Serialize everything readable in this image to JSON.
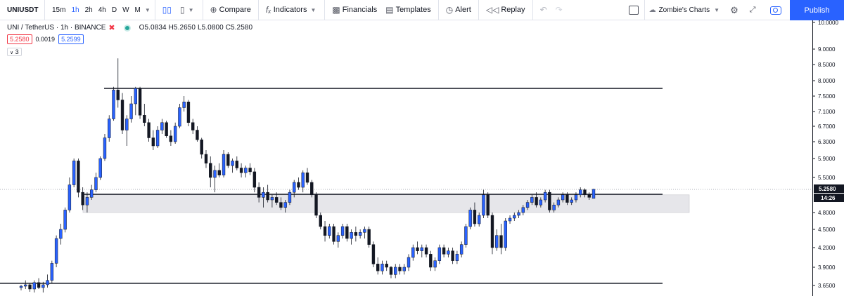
{
  "toolbar": {
    "symbol": "UNIUSDT",
    "intervals": [
      "15m",
      "1h",
      "2h",
      "4h",
      "D",
      "W",
      "M"
    ],
    "active_interval": "1h",
    "compare_label": "Compare",
    "indicators_label": "Indicators",
    "financials_label": "Financials",
    "templates_label": "Templates",
    "alert_label": "Alert",
    "replay_label": "Replay",
    "layout_name": "Zombie's Charts",
    "publish_label": "Publish"
  },
  "legend": {
    "title": "UNI / TetherUS · 1h · BINANCE",
    "ohlc": "O5.0834 H5.2650 L5.0800 C5.2580",
    "bid": "5.2580",
    "spread": "0.0019",
    "ask": "5.2599",
    "collapsed_count": "3"
  },
  "colors": {
    "up": "#2962ff",
    "down": "#131722",
    "zone_fill": "#e6e6ea",
    "line": "#131722",
    "publish": "#2962ff",
    "last_price_bg": "#131722"
  },
  "chart_data": {
    "type": "candlestick",
    "price_axis_ticks": [
      "10.0000",
      "9.0000",
      "8.5000",
      "8.0000",
      "7.5000",
      "7.1000",
      "6.7000",
      "6.3000",
      "5.9000",
      "5.5000",
      "4.8000",
      "4.5000",
      "4.2000",
      "3.9000",
      "3.6500"
    ],
    "last_price": "5.2580",
    "countdown": "14:26",
    "horizontal_levels": [
      7.75,
      3.68
    ],
    "support_zone": [
      4.8,
      5.15
    ],
    "candles": [
      [
        3.62,
        3.66,
        3.58,
        3.64
      ],
      [
        3.64,
        3.72,
        3.6,
        3.66
      ],
      [
        3.66,
        3.68,
        3.56,
        3.6
      ],
      [
        3.6,
        3.72,
        3.55,
        3.69
      ],
      [
        3.69,
        3.75,
        3.6,
        3.62
      ],
      [
        3.62,
        3.7,
        3.55,
        3.66
      ],
      [
        3.66,
        3.8,
        3.62,
        3.72
      ],
      [
        3.72,
        4.0,
        3.68,
        3.96
      ],
      [
        3.96,
        4.4,
        3.9,
        4.35
      ],
      [
        4.35,
        4.6,
        4.25,
        4.5
      ],
      [
        4.5,
        4.9,
        4.45,
        4.85
      ],
      [
        4.85,
        5.5,
        4.8,
        5.35
      ],
      [
        5.35,
        5.9,
        5.3,
        5.85
      ],
      [
        5.85,
        5.9,
        5.1,
        5.2
      ],
      [
        5.2,
        5.3,
        4.85,
        4.95
      ],
      [
        4.95,
        5.2,
        4.8,
        5.1
      ],
      [
        5.1,
        5.35,
        5.05,
        5.25
      ],
      [
        5.25,
        5.6,
        5.2,
        5.5
      ],
      [
        5.5,
        5.95,
        5.45,
        5.9
      ],
      [
        5.9,
        6.5,
        5.85,
        6.4
      ],
      [
        6.4,
        7.0,
        6.3,
        6.9
      ],
      [
        6.9,
        7.8,
        6.85,
        7.7
      ],
      [
        7.7,
        8.7,
        7.2,
        7.4
      ],
      [
        7.4,
        7.6,
        6.5,
        6.6
      ],
      [
        6.6,
        7.0,
        6.2,
        6.9
      ],
      [
        6.9,
        7.5,
        6.8,
        7.3
      ],
      [
        7.3,
        7.8,
        7.0,
        7.75
      ],
      [
        7.75,
        7.8,
        6.9,
        7.0
      ],
      [
        7.0,
        7.3,
        6.7,
        6.8
      ],
      [
        6.8,
        6.9,
        6.3,
        6.4
      ],
      [
        6.4,
        6.6,
        6.1,
        6.2
      ],
      [
        6.2,
        6.7,
        6.15,
        6.6
      ],
      [
        6.6,
        6.9,
        6.5,
        6.8
      ],
      [
        6.8,
        6.85,
        6.4,
        6.45
      ],
      [
        6.45,
        6.6,
        6.2,
        6.3
      ],
      [
        6.3,
        6.8,
        6.25,
        6.7
      ],
      [
        6.7,
        7.3,
        6.65,
        7.2
      ],
      [
        7.2,
        7.5,
        7.1,
        7.35
      ],
      [
        7.35,
        7.4,
        6.7,
        6.8
      ],
      [
        6.8,
        6.9,
        6.5,
        6.6
      ],
      [
        6.6,
        6.7,
        6.3,
        6.35
      ],
      [
        6.35,
        6.4,
        5.9,
        6.0
      ],
      [
        6.0,
        6.1,
        5.7,
        5.8
      ],
      [
        5.8,
        5.95,
        5.3,
        5.5
      ],
      [
        5.5,
        5.75,
        5.2,
        5.65
      ],
      [
        5.65,
        5.8,
        5.5,
        5.55
      ],
      [
        5.55,
        6.1,
        5.5,
        6.0
      ],
      [
        6.0,
        6.05,
        5.7,
        5.75
      ],
      [
        5.75,
        5.9,
        5.6,
        5.85
      ],
      [
        5.85,
        5.95,
        5.65,
        5.7
      ],
      [
        5.7,
        5.8,
        5.5,
        5.6
      ],
      [
        5.6,
        5.75,
        5.5,
        5.7
      ],
      [
        5.7,
        5.8,
        5.55,
        5.62
      ],
      [
        5.62,
        5.7,
        5.2,
        5.3
      ],
      [
        5.3,
        5.4,
        5.0,
        5.1
      ],
      [
        5.1,
        5.3,
        4.9,
        5.2
      ],
      [
        5.2,
        5.35,
        5.0,
        5.05
      ],
      [
        5.05,
        5.15,
        4.9,
        5.1
      ],
      [
        5.1,
        5.2,
        4.95,
        5.0
      ],
      [
        5.0,
        5.1,
        4.85,
        4.9
      ],
      [
        4.9,
        5.05,
        4.8,
        5.0
      ],
      [
        5.0,
        5.25,
        4.95,
        5.2
      ],
      [
        5.2,
        5.45,
        5.1,
        5.4
      ],
      [
        5.4,
        5.5,
        5.25,
        5.3
      ],
      [
        5.3,
        5.65,
        5.2,
        5.6
      ],
      [
        5.6,
        5.7,
        5.35,
        5.4
      ],
      [
        5.4,
        5.45,
        5.1,
        5.15
      ],
      [
        5.15,
        5.2,
        4.7,
        4.75
      ],
      [
        4.75,
        4.8,
        4.5,
        4.55
      ],
      [
        4.55,
        4.65,
        4.3,
        4.4
      ],
      [
        4.4,
        4.6,
        4.35,
        4.55
      ],
      [
        4.55,
        4.6,
        4.25,
        4.3
      ],
      [
        4.3,
        4.45,
        4.2,
        4.4
      ],
      [
        4.4,
        4.6,
        4.35,
        4.55
      ],
      [
        4.55,
        4.6,
        4.3,
        4.35
      ],
      [
        4.35,
        4.5,
        4.25,
        4.45
      ],
      [
        4.45,
        4.55,
        4.3,
        4.4
      ],
      [
        4.4,
        4.5,
        4.35,
        4.45
      ],
      [
        4.45,
        4.55,
        4.35,
        4.5
      ],
      [
        4.5,
        4.55,
        4.2,
        4.25
      ],
      [
        4.25,
        4.3,
        3.9,
        3.95
      ],
      [
        3.95,
        4.05,
        3.8,
        3.85
      ],
      [
        3.85,
        4.0,
        3.8,
        3.95
      ],
      [
        3.95,
        4.0,
        3.85,
        3.9
      ],
      [
        3.9,
        3.92,
        3.75,
        3.8
      ],
      [
        3.8,
        3.95,
        3.75,
        3.9
      ],
      [
        3.9,
        3.95,
        3.8,
        3.85
      ],
      [
        3.85,
        3.95,
        3.8,
        3.9
      ],
      [
        3.9,
        4.1,
        3.85,
        4.05
      ],
      [
        4.05,
        4.25,
        4.0,
        4.2
      ],
      [
        4.2,
        4.3,
        4.1,
        4.15
      ],
      [
        4.15,
        4.25,
        4.05,
        4.2
      ],
      [
        4.2,
        4.25,
        4.05,
        4.1
      ],
      [
        4.1,
        4.15,
        3.85,
        3.9
      ],
      [
        3.9,
        4.05,
        3.85,
        4.0
      ],
      [
        4.0,
        4.25,
        3.95,
        4.2
      ],
      [
        4.2,
        4.25,
        4.05,
        4.1
      ],
      [
        4.1,
        4.2,
        4.05,
        4.15
      ],
      [
        4.15,
        4.2,
        3.95,
        4.0
      ],
      [
        4.0,
        4.15,
        3.95,
        4.1
      ],
      [
        4.1,
        4.3,
        4.05,
        4.25
      ],
      [
        4.25,
        4.6,
        4.2,
        4.55
      ],
      [
        4.55,
        4.9,
        4.5,
        4.85
      ],
      [
        4.85,
        5.0,
        4.55,
        4.6
      ],
      [
        4.6,
        4.8,
        4.55,
        4.75
      ],
      [
        4.75,
        5.25,
        4.7,
        5.15
      ],
      [
        5.15,
        5.2,
        4.7,
        4.75
      ],
      [
        4.75,
        4.8,
        4.1,
        4.2
      ],
      [
        4.2,
        4.5,
        4.15,
        4.4
      ],
      [
        4.4,
        4.6,
        4.1,
        4.2
      ],
      [
        4.2,
        4.7,
        4.15,
        4.65
      ],
      [
        4.65,
        4.75,
        4.6,
        4.7
      ],
      [
        4.7,
        4.8,
        4.65,
        4.75
      ],
      [
        4.75,
        4.85,
        4.7,
        4.8
      ],
      [
        4.8,
        4.95,
        4.75,
        4.9
      ],
      [
        4.9,
        5.05,
        4.85,
        5.0
      ],
      [
        5.0,
        5.15,
        4.95,
        5.1
      ],
      [
        5.1,
        5.2,
        4.9,
        4.95
      ],
      [
        4.95,
        5.1,
        4.9,
        5.05
      ],
      [
        5.05,
        5.25,
        5.0,
        5.2
      ],
      [
        5.2,
        5.25,
        4.8,
        4.85
      ],
      [
        4.85,
        5.0,
        4.8,
        4.95
      ],
      [
        4.95,
        5.1,
        4.9,
        5.05
      ],
      [
        5.05,
        5.2,
        5.0,
        5.15
      ],
      [
        5.15,
        5.2,
        4.95,
        5.0
      ],
      [
        5.0,
        5.1,
        4.95,
        5.05
      ],
      [
        5.05,
        5.2,
        5.0,
        5.15
      ],
      [
        5.15,
        5.3,
        5.1,
        5.25
      ],
      [
        5.25,
        5.28,
        5.1,
        5.15
      ],
      [
        5.15,
        5.2,
        5.05,
        5.1
      ],
      [
        5.08,
        5.27,
        5.08,
        5.26
      ]
    ]
  }
}
